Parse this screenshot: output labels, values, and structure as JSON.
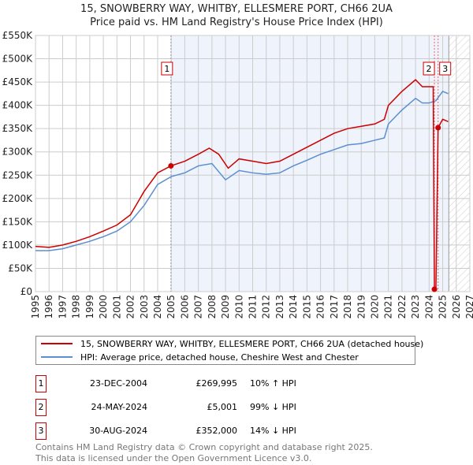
{
  "chart_data": {
    "type": "line",
    "title": "15, SNOWBERRY WAY, WHITBY, ELLESMERE PORT, CH66 2UA",
    "subtitle": "Price paid vs. HM Land Registry's House Price Index (HPI)",
    "xlim": [
      1995,
      2027
    ],
    "ylim": [
      0,
      550000
    ],
    "x_ticks": [
      "1995",
      "1996",
      "1997",
      "1998",
      "1999",
      "2000",
      "2001",
      "2002",
      "2003",
      "2004",
      "2005",
      "2006",
      "2007",
      "2008",
      "2009",
      "2010",
      "2011",
      "2012",
      "2013",
      "2014",
      "2015",
      "2016",
      "2017",
      "2018",
      "2019",
      "2020",
      "2021",
      "2022",
      "2023",
      "2024",
      "2025",
      "2026",
      "2027"
    ],
    "y_ticks": [
      {
        "v": 0,
        "l": "£0"
      },
      {
        "v": 50000,
        "l": "£50K"
      },
      {
        "v": 100000,
        "l": "£100K"
      },
      {
        "v": 150000,
        "l": "£150K"
      },
      {
        "v": 200000,
        "l": "£200K"
      },
      {
        "v": 250000,
        "l": "£250K"
      },
      {
        "v": 300000,
        "l": "£300K"
      },
      {
        "v": 350000,
        "l": "£350K"
      },
      {
        "v": 400000,
        "l": "£400K"
      },
      {
        "v": 450000,
        "l": "£450K"
      },
      {
        "v": 500000,
        "l": "£500K"
      },
      {
        "v": 550000,
        "l": "£550K"
      }
    ],
    "grid": true,
    "series": [
      {
        "name": "15, SNOWBERRY WAY, WHITBY, ELLESMERE PORT, CH66 2UA (detached house)",
        "color": "#cc0000",
        "x": [
          1995,
          1996,
          1997,
          1998,
          1999,
          2000,
          2001,
          2002,
          2003,
          2004,
          2004.98,
          2006,
          2007,
          2007.8,
          2008.5,
          2009.2,
          2010,
          2011,
          2012,
          2013,
          2014,
          2015,
          2016,
          2017,
          2018,
          2019,
          2020,
          2020.7,
          2021,
          2022,
          2023,
          2023.5,
          2024.3,
          2024.39,
          2024.5,
          2024.66,
          2025,
          2025.4
        ],
        "y": [
          97000,
          95000,
          100000,
          108000,
          118000,
          130000,
          143000,
          165000,
          215000,
          255000,
          269995,
          280000,
          295000,
          308000,
          295000,
          265000,
          285000,
          280000,
          275000,
          280000,
          295000,
          310000,
          325000,
          340000,
          350000,
          355000,
          360000,
          370000,
          400000,
          430000,
          455000,
          440000,
          440000,
          5001,
          5001,
          352000,
          370000,
          365000
        ]
      },
      {
        "name": "HPI: Average price, detached house, Cheshire West and Chester",
        "color": "#5b8fd0",
        "x": [
          1995,
          1996,
          1997,
          1998,
          1999,
          2000,
          2001,
          2002,
          2003,
          2004,
          2005,
          2006,
          2007,
          2008,
          2009,
          2010,
          2011,
          2012,
          2013,
          2014,
          2015,
          2016,
          2017,
          2018,
          2019,
          2020,
          2020.7,
          2021,
          2022,
          2023,
          2023.5,
          2024,
          2024.5,
          2025,
          2025.4
        ],
        "y": [
          88000,
          88000,
          92000,
          100000,
          108000,
          118000,
          130000,
          150000,
          185000,
          230000,
          247000,
          255000,
          270000,
          275000,
          240000,
          260000,
          255000,
          252000,
          255000,
          270000,
          282000,
          295000,
          305000,
          315000,
          318000,
          325000,
          330000,
          360000,
          390000,
          415000,
          405000,
          405000,
          410000,
          430000,
          425000
        ]
      }
    ],
    "annotations": [
      {
        "label": "1",
        "date": "23-DEC-2004",
        "x": 2004.98,
        "price": "£269,995",
        "value": 269995,
        "hpi": "10% ↑ HPI"
      },
      {
        "label": "2",
        "date": "24-MAY-2024",
        "x": 2024.39,
        "price": "£5,001",
        "value": 5001,
        "hpi": "99% ↓ HPI"
      },
      {
        "label": "3",
        "date": "30-AUG-2024",
        "x": 2024.66,
        "price": "£352,000",
        "value": 352000,
        "hpi": "14% ↓ HPI"
      }
    ],
    "future_from": 2025.45,
    "legend_placement": "below"
  },
  "footer": {
    "line1": "Contains HM Land Registry data © Crown copyright and database right 2025.",
    "line2": "This data is licensed under the Open Government Licence v3.0."
  }
}
